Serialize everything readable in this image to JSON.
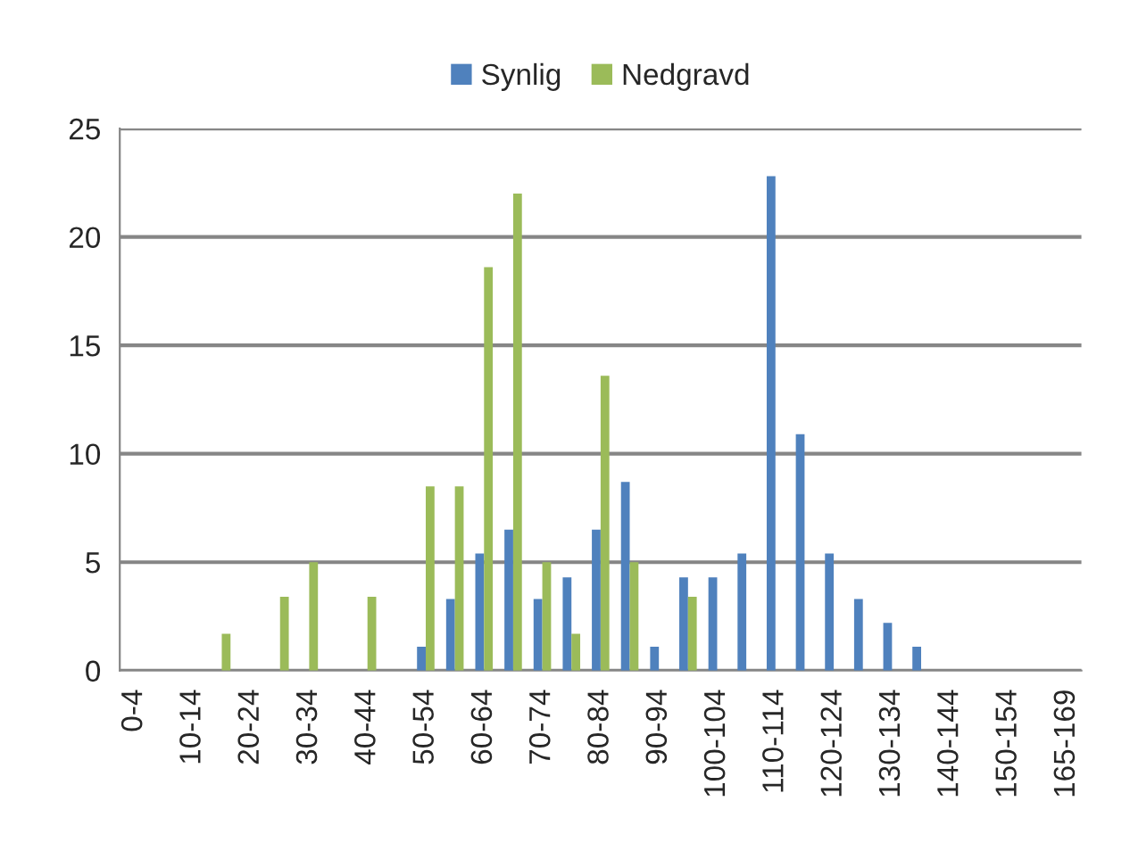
{
  "chart_data": {
    "type": "bar",
    "categories": [
      "0-4",
      null,
      "10-14",
      null,
      "20-24",
      null,
      "30-34",
      null,
      "40-44",
      null,
      "50-54",
      null,
      "60-64",
      null,
      "70-74",
      null,
      "80-84",
      null,
      "90-94",
      null,
      "100-104",
      null,
      "110-114",
      null,
      "120-124",
      null,
      "130-134",
      null,
      "140-144",
      null,
      "150-154",
      null,
      "165-169"
    ],
    "series": [
      {
        "name": "Synlig",
        "color": "#4f81bd",
        "values": [
          0,
          0,
          0,
          0,
          0,
          0,
          0,
          0,
          0,
          0,
          1.1,
          3.3,
          5.4,
          6.5,
          3.3,
          4.3,
          6.5,
          8.7,
          1.1,
          4.3,
          4.3,
          5.4,
          22.8,
          10.9,
          5.4,
          3.3,
          2.2,
          1.1,
          0,
          0,
          0,
          0,
          0
        ]
      },
      {
        "name": "Nedgravd",
        "color": "#9bbb59",
        "values": [
          0,
          0,
          0,
          1.7,
          0,
          3.4,
          5.0,
          0,
          3.4,
          0,
          8.5,
          8.5,
          18.6,
          22.0,
          5.0,
          1.7,
          13.6,
          5.0,
          0,
          3.4,
          0,
          0,
          0,
          0,
          0,
          0,
          0,
          0,
          0,
          0,
          0,
          0,
          0
        ]
      }
    ],
    "ylim": [
      0,
      25
    ],
    "yticks": [
      0,
      5,
      10,
      15,
      20,
      25
    ],
    "grid": "y",
    "legend": "top"
  }
}
